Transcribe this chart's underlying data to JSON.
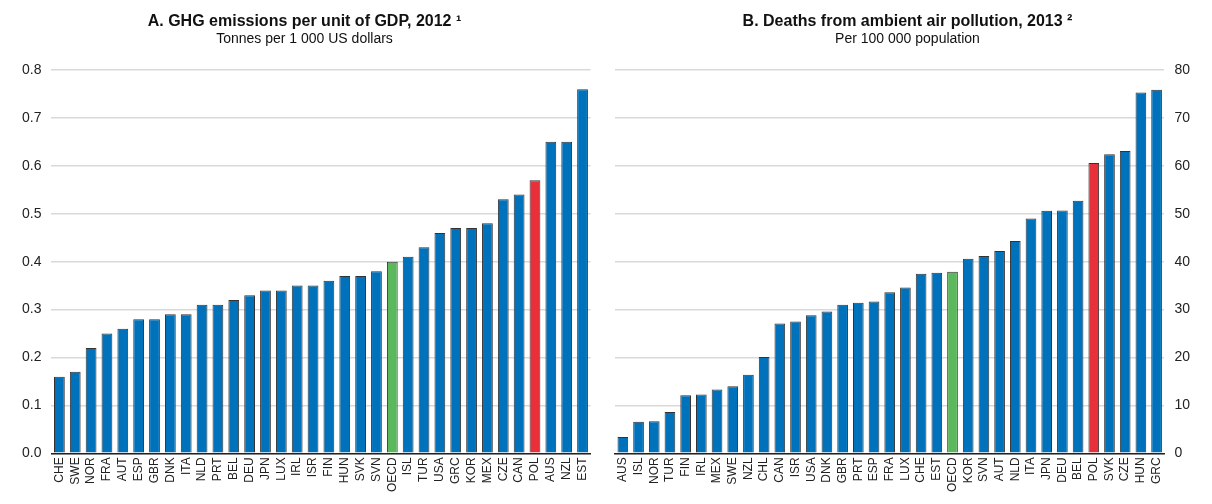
{
  "chart_data": [
    {
      "type": "bar",
      "title": "A. GHG emissions per unit of GDP, 2012 ¹",
      "subtitle": "Tonnes per 1 000 US dollars",
      "categories": [
        "CHE",
        "SWE",
        "NOR",
        "FRA",
        "AUT",
        "ESP",
        "GBR",
        "DNK",
        "ITA",
        "NLD",
        "PRT",
        "BEL",
        "DEU",
        "JPN",
        "LUX",
        "IRL",
        "ISR",
        "FIN",
        "HUN",
        "SVK",
        "SVN",
        "OECD",
        "ISL",
        "TUR",
        "USA",
        "GRC",
        "KOR",
        "MEX",
        "CZE",
        "CAN",
        "POL",
        "AUS",
        "NZL",
        "EST"
      ],
      "series": [
        {
          "values": [
            0.16,
            0.17,
            0.22,
            0.25,
            0.26,
            0.28,
            0.28,
            0.29,
            0.29,
            0.31,
            0.31,
            0.32,
            0.33,
            0.34,
            0.34,
            0.35,
            0.35,
            0.36,
            0.37,
            0.37,
            0.38,
            0.4,
            0.41,
            0.43,
            0.46,
            0.47,
            0.47,
            0.48,
            0.53,
            0.54,
            0.57,
            0.65,
            0.65,
            0.76
          ],
          "colors": [
            "#0072bb",
            "#0072bb",
            "#0072bb",
            "#0072bb",
            "#0072bb",
            "#0072bb",
            "#0072bb",
            "#0072bb",
            "#0072bb",
            "#0072bb",
            "#0072bb",
            "#0072bb",
            "#0072bb",
            "#0072bb",
            "#0072bb",
            "#0072bb",
            "#0072bb",
            "#0072bb",
            "#0072bb",
            "#0072bb",
            "#0072bb",
            "#5cb85c",
            "#0072bb",
            "#0072bb",
            "#0072bb",
            "#0072bb",
            "#0072bb",
            "#0072bb",
            "#0072bb",
            "#0072bb",
            "#e8303a",
            "#0072bb",
            "#0072bb",
            "#0072bb"
          ]
        }
      ],
      "ylim": [
        0,
        0.8
      ],
      "yticks": [
        {
          "value": 0,
          "label": "0.0"
        },
        0.1,
        0.2,
        0.3,
        0.4,
        0.5,
        0.6,
        0.7,
        0.8
      ],
      "grid": "y",
      "legend": false
    },
    {
      "type": "bar",
      "title": "B. Deaths from ambient air pollution, 2013 ²",
      "subtitle": "Per 100 000 population",
      "categories": [
        "AUS",
        "ISL",
        "NOR",
        "TUR",
        "FIN",
        "IRL",
        "MEX",
        "SWE",
        "NZL",
        "CHL",
        "CAN",
        "ISR",
        "USA",
        "DNK",
        "GBR",
        "PRT",
        "ESP",
        "FRA",
        "LUX",
        "CHE",
        "EST",
        "OECD",
        "KOR",
        "SVN",
        "AUT",
        "NLD",
        "ITA",
        "JPN",
        "DEU",
        "BEL",
        "POL",
        "SVK",
        "CZE",
        "HUN",
        "GRC"
      ],
      "series": [
        {
          "axis": "y2",
          "values": [
            3.4,
            6.6,
            6.7,
            8.6,
            12.1,
            12.3,
            13.3,
            14.0,
            16.4,
            20.1,
            27.1,
            27.5,
            28.8,
            29.6,
            31.0,
            31.4,
            31.7,
            33.6,
            34.6,
            37.5,
            37.7,
            37.9,
            40.6,
            41.2,
            42.2,
            44.3,
            49.0,
            50.6,
            50.7,
            52.7,
            60.6,
            62.4,
            63.1,
            75.3,
            75.9
          ],
          "colors": [
            "#0072bb",
            "#0072bb",
            "#0072bb",
            "#0072bb",
            "#0072bb",
            "#0072bb",
            "#0072bb",
            "#0072bb",
            "#0072bb",
            "#0072bb",
            "#0072bb",
            "#0072bb",
            "#0072bb",
            "#0072bb",
            "#0072bb",
            "#0072bb",
            "#0072bb",
            "#0072bb",
            "#0072bb",
            "#0072bb",
            "#0072bb",
            "#5cb85c",
            "#0072bb",
            "#0072bb",
            "#0072bb",
            "#0072bb",
            "#0072bb",
            "#0072bb",
            "#0072bb",
            "#0072bb",
            "#e8303a",
            "#0072bb",
            "#0072bb",
            "#0072bb",
            "#0072bb"
          ]
        }
      ],
      "y2lim": [
        0,
        80
      ],
      "y2ticks": [
        0,
        10,
        20,
        30,
        40,
        50,
        60,
        70,
        80
      ],
      "grid": "y",
      "legend": false
    }
  ]
}
